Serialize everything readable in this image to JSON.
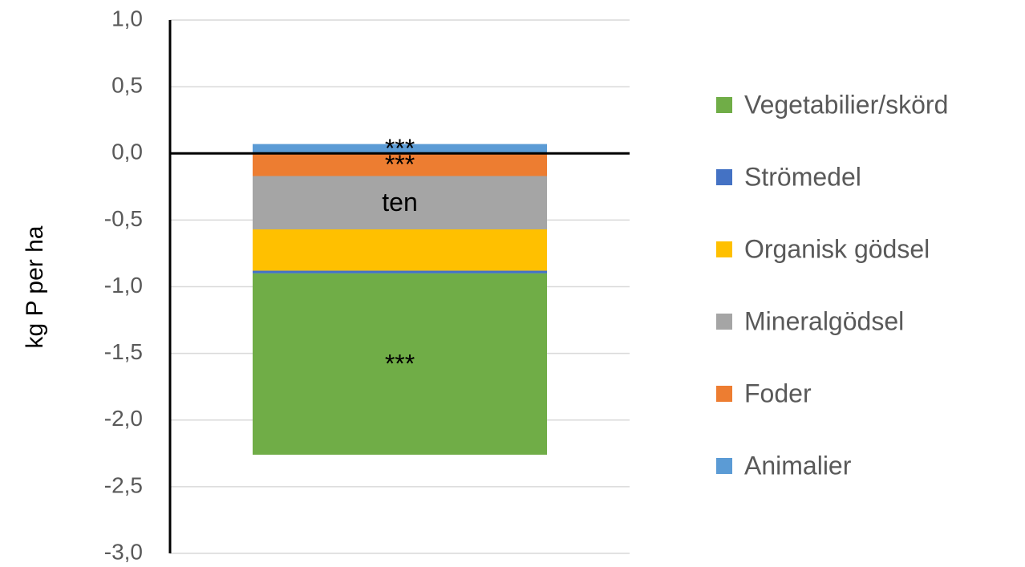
{
  "chart_data": {
    "type": "stacked_bar",
    "y_label": "kg P per ha",
    "categories": [
      null
    ],
    "series": [
      {
        "name": "Animalier",
        "color": "#5b9bd5",
        "values": [
          0.07
        ],
        "label": "***"
      },
      {
        "name": "Foder",
        "color": "#ed7d31",
        "values": [
          -0.17
        ],
        "label": "***"
      },
      {
        "name": "Mineralgödsel",
        "color": "#a5a5a5",
        "values": [
          -0.4
        ],
        "label": "ten"
      },
      {
        "name": "Organisk gödsel",
        "color": "#ffc000",
        "values": [
          -0.31
        ]
      },
      {
        "name": "Strömedel",
        "color": "#4472c4",
        "values": [
          -0.02
        ]
      },
      {
        "name": "Vegetabilier/skörd",
        "color": "#70ad47",
        "values": [
          -1.36
        ],
        "label": "***"
      }
    ],
    "ylim": [
      -3,
      1
    ],
    "yticks": [
      {
        "value": 1,
        "label": "1,0"
      },
      {
        "value": 0.5,
        "label": "0,5"
      },
      {
        "value": 0,
        "label": "0,0"
      },
      {
        "value": -0.5,
        "label": "-0,5"
      },
      {
        "value": -1,
        "label": "-1,0"
      },
      {
        "value": -1.5,
        "label": "-1,5"
      },
      {
        "value": -2,
        "label": "-2,0"
      },
      {
        "value": -2.5,
        "label": "-2,5"
      },
      {
        "value": -3,
        "label": "-3,0"
      }
    ],
    "grid": true,
    "legend": "right"
  }
}
